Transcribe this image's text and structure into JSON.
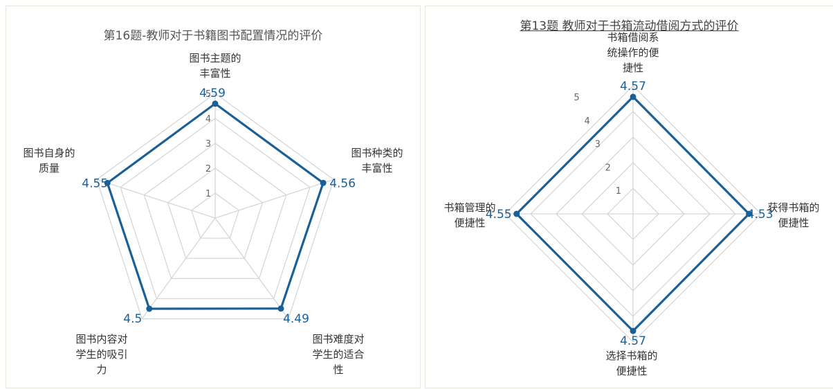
{
  "chart_data": [
    {
      "type": "radar",
      "title": "第16题-教师对于书籍图书配置情况的评价",
      "categories": [
        [
          "图书主题的",
          "丰富性"
        ],
        [
          "图书种类的",
          "丰富性"
        ],
        [
          "图书难度对",
          "学生的适合",
          "性"
        ],
        [
          "图书内容对",
          "学生的吸引",
          "力"
        ],
        [
          "图书自身的",
          "质量"
        ]
      ],
      "values": [
        4.59,
        4.56,
        4.49,
        4.5,
        4.55
      ],
      "value_labels": [
        "4.59",
        "4.56",
        "4.49",
        "4.5",
        "4.55"
      ],
      "rlim": [
        0,
        5
      ],
      "ticks": [
        "1",
        "2",
        "3",
        "4",
        "5"
      ],
      "grid": true,
      "color": "#1a5f96"
    },
    {
      "type": "radar",
      "title": "第13题 教师对于书箱流动借阅方式的评价",
      "categories": [
        [
          "书箱借阅系",
          "统操作的便",
          "捷性"
        ],
        [
          "获得书箱的",
          "便捷性"
        ],
        [
          "选择书箱的",
          "便捷性"
        ],
        [
          "书箱管理的",
          "便捷性"
        ]
      ],
      "values": [
        4.57,
        4.53,
        4.57,
        4.55
      ],
      "value_labels": [
        "4.57",
        "4.53",
        "4.57",
        "4.55"
      ],
      "rlim": [
        0,
        5
      ],
      "ticks": [
        "1",
        "2",
        "3",
        "4",
        "5"
      ],
      "grid": true,
      "color": "#1a5f96"
    }
  ]
}
